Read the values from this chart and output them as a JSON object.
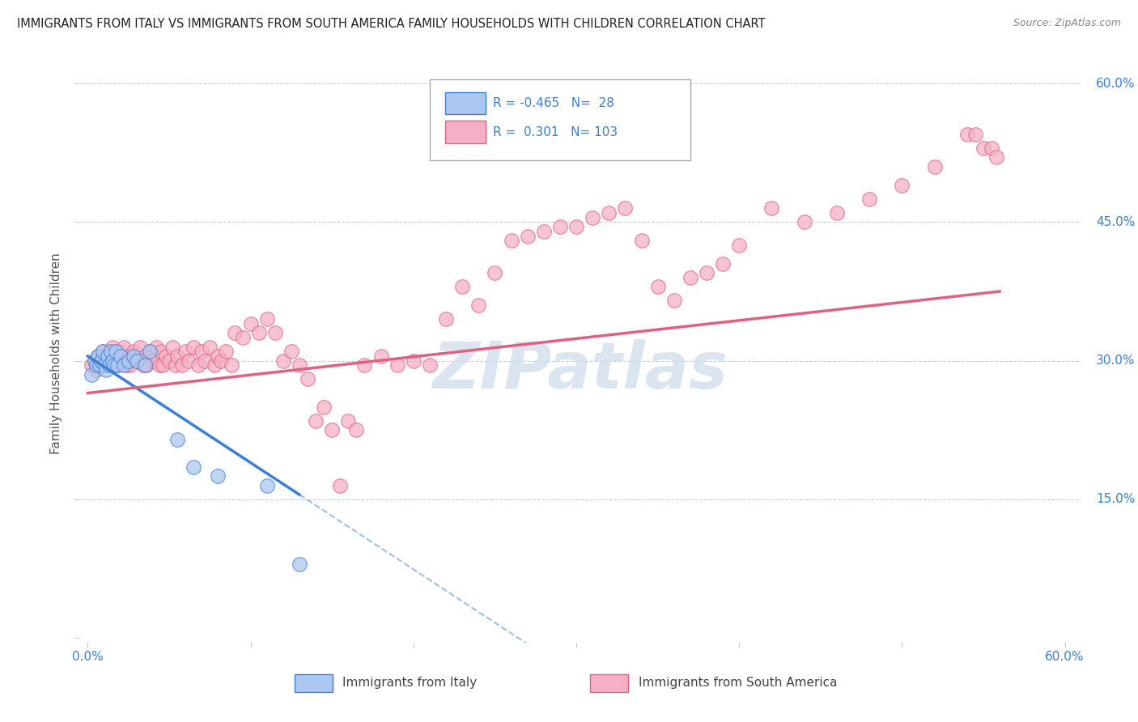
{
  "title": "IMMIGRANTS FROM ITALY VS IMMIGRANTS FROM SOUTH AMERICA FAMILY HOUSEHOLDS WITH CHILDREN CORRELATION CHART",
  "source": "Source: ZipAtlas.com",
  "ylabel": "Family Households with Children",
  "xlabel_italy": "Immigrants from Italy",
  "xlabel_sa": "Immigrants from South America",
  "xlim": [
    0.0,
    0.6
  ],
  "ylim": [
    0.0,
    0.6
  ],
  "r_italy": -0.465,
  "n_italy": 28,
  "r_sa": 0.301,
  "n_sa": 103,
  "color_italy": "#adc8f0",
  "color_sa": "#f5b0c5",
  "line_color_italy": "#3a7fd5",
  "line_color_sa": "#e06080",
  "watermark": "ZIPatlas",
  "watermark_color": "#c8d8e8",
  "italy_x": [
    0.002,
    0.004,
    0.005,
    0.006,
    0.007,
    0.008,
    0.009,
    0.01,
    0.011,
    0.012,
    0.013,
    0.014,
    0.015,
    0.016,
    0.017,
    0.018,
    0.02,
    0.022,
    0.025,
    0.028,
    0.03,
    0.035,
    0.038,
    0.055,
    0.065,
    0.08,
    0.11,
    0.13
  ],
  "italy_y": [
    0.285,
    0.3,
    0.295,
    0.305,
    0.295,
    0.3,
    0.31,
    0.295,
    0.29,
    0.305,
    0.295,
    0.31,
    0.3,
    0.295,
    0.31,
    0.295,
    0.305,
    0.295,
    0.3,
    0.305,
    0.3,
    0.295,
    0.31,
    0.215,
    0.185,
    0.175,
    0.165,
    0.08
  ],
  "sa_x": [
    0.002,
    0.004,
    0.005,
    0.006,
    0.007,
    0.008,
    0.009,
    0.01,
    0.011,
    0.012,
    0.013,
    0.014,
    0.015,
    0.016,
    0.017,
    0.018,
    0.019,
    0.02,
    0.022,
    0.024,
    0.025,
    0.026,
    0.028,
    0.03,
    0.032,
    0.034,
    0.035,
    0.036,
    0.038,
    0.04,
    0.042,
    0.044,
    0.045,
    0.046,
    0.048,
    0.05,
    0.052,
    0.054,
    0.055,
    0.058,
    0.06,
    0.062,
    0.065,
    0.068,
    0.07,
    0.072,
    0.075,
    0.078,
    0.08,
    0.082,
    0.085,
    0.088,
    0.09,
    0.095,
    0.1,
    0.105,
    0.11,
    0.115,
    0.12,
    0.125,
    0.13,
    0.135,
    0.14,
    0.145,
    0.15,
    0.155,
    0.16,
    0.165,
    0.17,
    0.18,
    0.19,
    0.2,
    0.21,
    0.22,
    0.23,
    0.24,
    0.25,
    0.26,
    0.27,
    0.28,
    0.29,
    0.3,
    0.31,
    0.32,
    0.33,
    0.34,
    0.35,
    0.36,
    0.37,
    0.38,
    0.39,
    0.4,
    0.42,
    0.44,
    0.46,
    0.48,
    0.5,
    0.52,
    0.54,
    0.545,
    0.55,
    0.555,
    0.558
  ],
  "sa_y": [
    0.295,
    0.3,
    0.29,
    0.305,
    0.295,
    0.3,
    0.31,
    0.295,
    0.305,
    0.295,
    0.31,
    0.3,
    0.315,
    0.295,
    0.305,
    0.295,
    0.31,
    0.3,
    0.315,
    0.295,
    0.305,
    0.295,
    0.31,
    0.3,
    0.315,
    0.295,
    0.305,
    0.295,
    0.31,
    0.3,
    0.315,
    0.295,
    0.31,
    0.295,
    0.305,
    0.3,
    0.315,
    0.295,
    0.305,
    0.295,
    0.31,
    0.3,
    0.315,
    0.295,
    0.31,
    0.3,
    0.315,
    0.295,
    0.305,
    0.3,
    0.31,
    0.295,
    0.33,
    0.325,
    0.34,
    0.33,
    0.345,
    0.33,
    0.3,
    0.31,
    0.295,
    0.28,
    0.235,
    0.25,
    0.225,
    0.165,
    0.235,
    0.225,
    0.295,
    0.305,
    0.295,
    0.3,
    0.295,
    0.345,
    0.38,
    0.36,
    0.395,
    0.43,
    0.435,
    0.44,
    0.445,
    0.445,
    0.455,
    0.46,
    0.465,
    0.43,
    0.38,
    0.365,
    0.39,
    0.395,
    0.405,
    0.425,
    0.465,
    0.45,
    0.46,
    0.475,
    0.49,
    0.51,
    0.545,
    0.545,
    0.53,
    0.53,
    0.52
  ]
}
